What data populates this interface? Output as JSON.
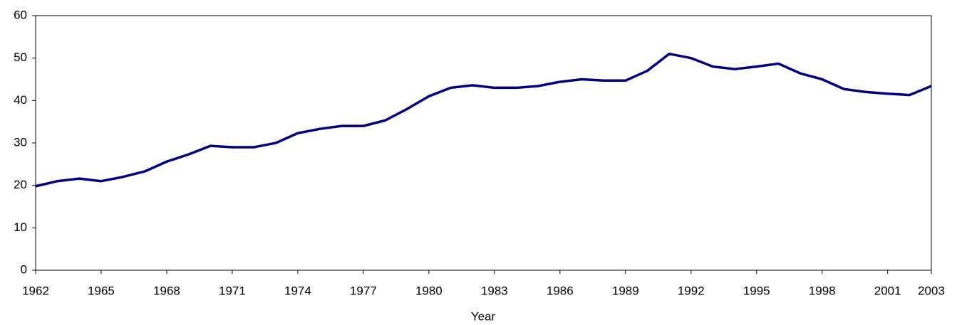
{
  "chart_data": {
    "type": "line",
    "x_label": "Year",
    "x": [
      1962,
      1963,
      1964,
      1965,
      1966,
      1967,
      1968,
      1969,
      1970,
      1971,
      1972,
      1973,
      1974,
      1975,
      1976,
      1977,
      1978,
      1979,
      1980,
      1981,
      1982,
      1983,
      1984,
      1985,
      1986,
      1987,
      1988,
      1989,
      1990,
      1991,
      1992,
      1993,
      1994,
      1995,
      1996,
      1997,
      1998,
      1999,
      2000,
      2001,
      2002,
      2003
    ],
    "series": [
      {
        "color": "#000080",
        "values": [
          19.8,
          21.0,
          21.6,
          21.0,
          22.0,
          23.3,
          25.6,
          27.3,
          29.3,
          29.0,
          29.0,
          30.0,
          32.3,
          33.3,
          34.0,
          34.0,
          35.3,
          38.0,
          41.0,
          43.0,
          43.6,
          43.0,
          43.0,
          43.4,
          44.4,
          45.0,
          44.7,
          44.7,
          47.0,
          51.0,
          50.0,
          48.0,
          47.4,
          48.0,
          48.7,
          46.4,
          45.0,
          42.7,
          42.0,
          41.6,
          41.3,
          43.4
        ]
      }
    ],
    "xlim": [
      1962,
      2003
    ],
    "xticks": [
      1962,
      1965,
      1968,
      1971,
      1974,
      1977,
      1980,
      1983,
      1986,
      1989,
      1992,
      1995,
      1998,
      2001,
      2003
    ],
    "ylim": [
      0,
      60
    ],
    "yticks": [
      0,
      10,
      20,
      30,
      40,
      50,
      60
    ]
  }
}
